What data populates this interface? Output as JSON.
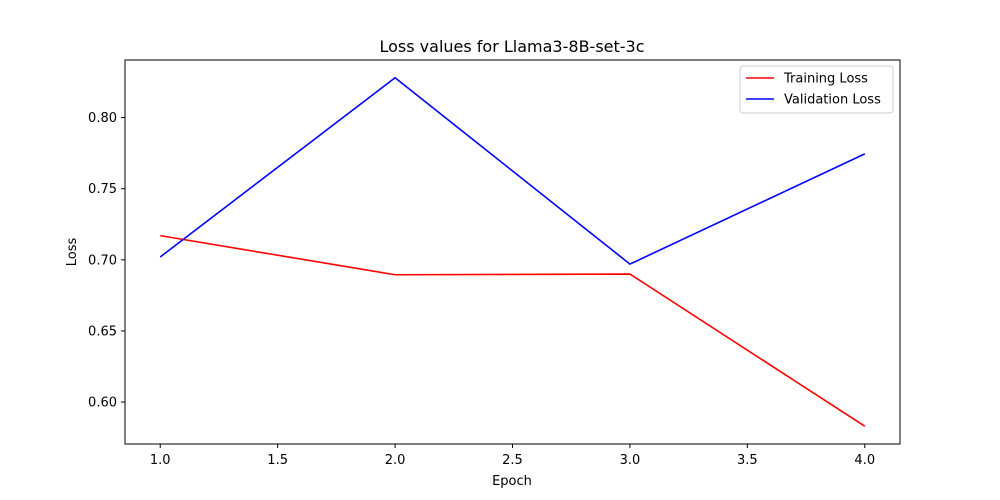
{
  "chart_data": {
    "type": "line",
    "title": "Loss values for Llama3-8B-set-3c",
    "xlabel": "Epoch",
    "ylabel": "Loss",
    "x": [
      1.0,
      2.0,
      3.0,
      4.0
    ],
    "xlim": [
      0.85,
      4.15
    ],
    "ylim": [
      0.5705,
      0.8405
    ],
    "xticks": [
      "1.0",
      "1.5",
      "2.0",
      "2.5",
      "3.0",
      "3.5",
      "4.0"
    ],
    "xtick_values": [
      1.0,
      1.5,
      2.0,
      2.5,
      3.0,
      3.5,
      4.0
    ],
    "yticks": [
      "0.60",
      "0.65",
      "0.70",
      "0.75",
      "0.80"
    ],
    "ytick_values": [
      0.6,
      0.65,
      0.7,
      0.75,
      0.8
    ],
    "grid": false,
    "legend_position": "top-right",
    "series": [
      {
        "name": "Training Loss",
        "color": "#ff0000",
        "values": [
          0.717,
          0.6895,
          0.69,
          0.583
        ]
      },
      {
        "name": "Validation Loss",
        "color": "#0000ff",
        "values": [
          0.702,
          0.828,
          0.697,
          0.7745
        ]
      }
    ]
  }
}
